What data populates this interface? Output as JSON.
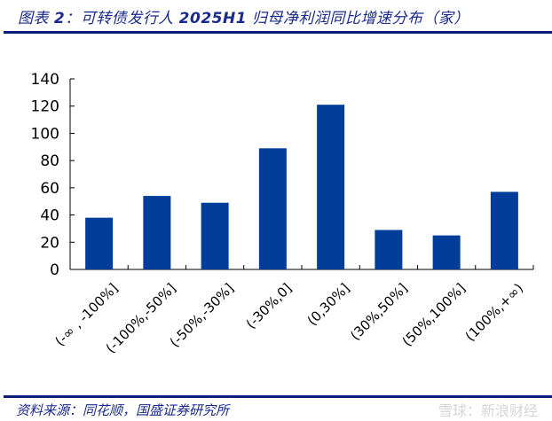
{
  "header": {
    "title_prefix": "图表 ",
    "title_num": "2",
    "title_colon": "：",
    "title_text": "可转债发行人 ",
    "title_bold": "2025H1",
    "title_suffix": " 归母净利润同比增速分布（家）"
  },
  "footer": {
    "source": "资料来源：同花顺，国盛证券研究所",
    "watermark": "雪球：新浪财经"
  },
  "colors": {
    "bar": "#023E99",
    "rule": "#0B1F7A",
    "title": "#1A2A8C"
  },
  "chart_data": {
    "type": "bar",
    "title": "图表 2：可转债发行人 2025H1 归母净利润同比增速分布（家）",
    "xlabel": "",
    "ylabel": "",
    "categories": [
      "(-∞ , -100%]",
      "(-100%,-50%]",
      "(-50%,-30%]",
      "(-30%,0]",
      "(0,30%]",
      "(30%,50%]",
      "(50%,100%]",
      "(100%,+∞)"
    ],
    "values": [
      38,
      54,
      49,
      89,
      121,
      29,
      25,
      57
    ],
    "ylim": [
      0,
      140
    ],
    "yticks": [
      0,
      20,
      40,
      60,
      80,
      100,
      120,
      140
    ],
    "grid": false,
    "legend": null,
    "source": "资料来源：同花顺，国盛证券研究所"
  }
}
